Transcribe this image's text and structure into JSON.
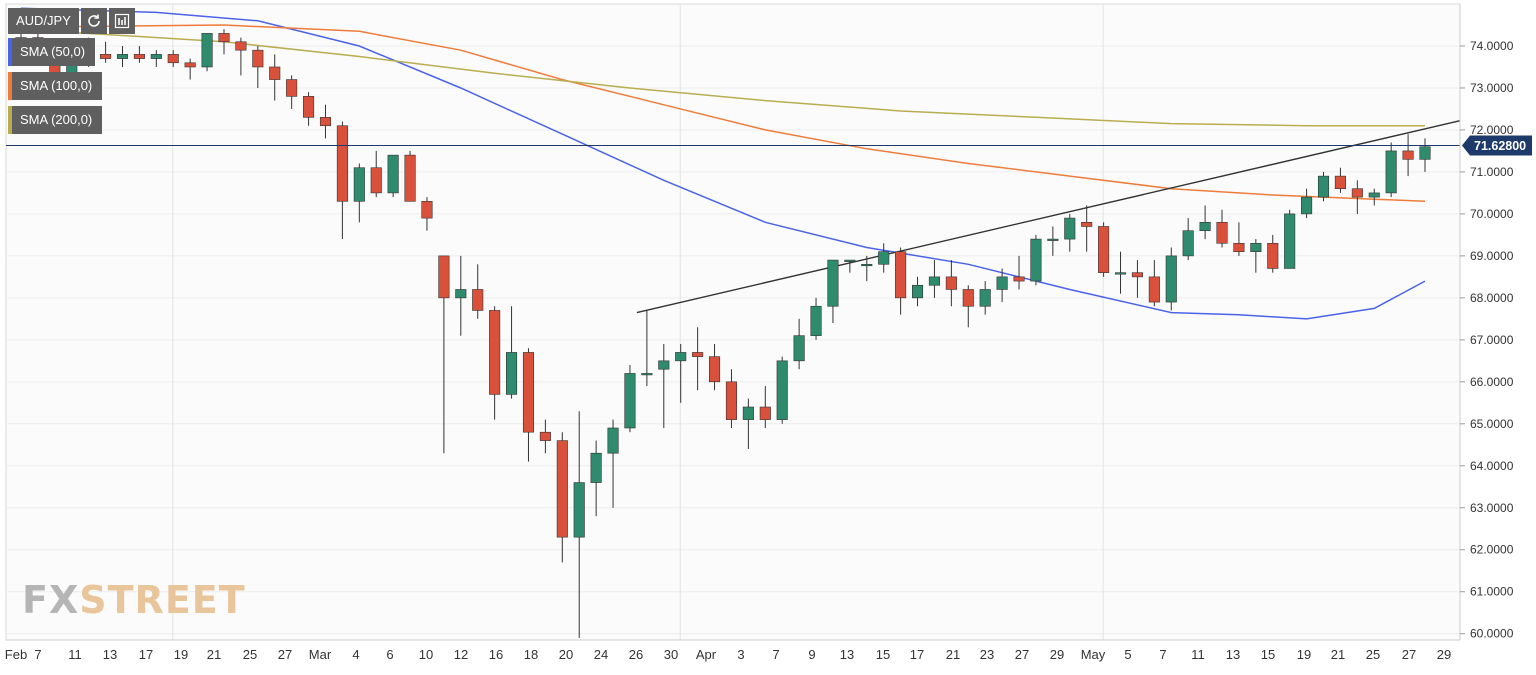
{
  "symbol": "AUD/JPY",
  "toolbar": {
    "refresh_icon": "refresh-icon",
    "chart_icon": "chart-settings-icon"
  },
  "indicators": [
    {
      "label": "SMA (50,0)",
      "color": "#4a63e8"
    },
    {
      "label": "SMA (100,0)",
      "color": "#ef7c3a"
    },
    {
      "label": "SMA (200,0)",
      "color": "#b9ad4f"
    }
  ],
  "watermark": {
    "part1": "FX",
    "part2": "STREET"
  },
  "colors": {
    "up": "#2e8b6e",
    "down": "#d9513b",
    "wick": "#333333",
    "price_line": "#1e3a6a",
    "trend_line": "#333333"
  },
  "chart_data": {
    "type": "candlestick",
    "title": "",
    "ylim": [
      59.85,
      75.0
    ],
    "y_ticks": [
      "60.0000",
      "61.0000",
      "62.0000",
      "63.0000",
      "64.0000",
      "65.0000",
      "66.0000",
      "67.0000",
      "68.0000",
      "69.0000",
      "70.0000",
      "71.0000",
      "72.0000",
      "73.0000",
      "74.0000"
    ],
    "x_ticks": [
      "Feb",
      "7",
      "11",
      "13",
      "17",
      "19",
      "21",
      "25",
      "27",
      "Mar",
      "4",
      "6",
      "10",
      "12",
      "16",
      "18",
      "20",
      "24",
      "26",
      "30",
      "Apr",
      "3",
      "7",
      "9",
      "13",
      "15",
      "17",
      "21",
      "23",
      "27",
      "29",
      "May",
      "5",
      "7",
      "11",
      "13",
      "15",
      "19",
      "21",
      "25",
      "27",
      "29"
    ],
    "last_price": "71.62800",
    "last_price_value": 71.628,
    "candles": [
      [
        74.2,
        74.3,
        73.9,
        74.2
      ],
      [
        74.2,
        74.3,
        73.6,
        73.9
      ],
      [
        73.9,
        74.1,
        73.2,
        73.3
      ],
      [
        73.3,
        74.0,
        73.2,
        73.9
      ],
      [
        73.9,
        74.2,
        73.5,
        73.8
      ],
      [
        73.8,
        74.1,
        73.6,
        73.7
      ],
      [
        73.7,
        74.0,
        73.5,
        73.8
      ],
      [
        73.8,
        74.0,
        73.6,
        73.7
      ],
      [
        73.7,
        73.9,
        73.5,
        73.8
      ],
      [
        73.8,
        73.9,
        73.5,
        73.6
      ],
      [
        73.6,
        73.7,
        73.2,
        73.5
      ],
      [
        73.5,
        74.3,
        73.4,
        74.3
      ],
      [
        74.3,
        74.4,
        73.8,
        74.1
      ],
      [
        74.1,
        74.2,
        73.3,
        73.9
      ],
      [
        73.9,
        74.0,
        73.0,
        73.5
      ],
      [
        73.5,
        73.8,
        72.7,
        73.2
      ],
      [
        73.2,
        73.3,
        72.5,
        72.8
      ],
      [
        72.8,
        72.9,
        72.1,
        72.3
      ],
      [
        72.3,
        72.6,
        71.8,
        72.1
      ],
      [
        72.1,
        72.2,
        69.4,
        70.3
      ],
      [
        70.3,
        71.2,
        69.8,
        71.1
      ],
      [
        71.1,
        71.5,
        70.4,
        70.5
      ],
      [
        70.5,
        71.4,
        70.4,
        71.4
      ],
      [
        71.4,
        71.5,
        70.3,
        70.3
      ],
      [
        70.3,
        70.4,
        69.6,
        69.9
      ],
      [
        69.0,
        69.0,
        64.3,
        68.0
      ],
      [
        68.0,
        69.0,
        67.1,
        68.2
      ],
      [
        68.2,
        68.8,
        67.5,
        67.7
      ],
      [
        67.7,
        67.8,
        65.1,
        65.7
      ],
      [
        65.7,
        67.8,
        65.6,
        66.7
      ],
      [
        66.7,
        66.8,
        64.1,
        64.8
      ],
      [
        64.8,
        65.1,
        64.3,
        64.6
      ],
      [
        64.6,
        64.8,
        61.7,
        62.3
      ],
      [
        62.3,
        65.3,
        59.9,
        63.6
      ],
      [
        63.6,
        64.6,
        62.8,
        64.3
      ],
      [
        64.3,
        65.1,
        63.0,
        64.9
      ],
      [
        64.9,
        66.4,
        64.8,
        66.2
      ],
      [
        66.2,
        67.7,
        65.9,
        66.2
      ],
      [
        66.3,
        66.9,
        64.9,
        66.5
      ],
      [
        66.5,
        66.9,
        65.5,
        66.7
      ],
      [
        66.7,
        67.3,
        65.8,
        66.6
      ],
      [
        66.6,
        66.9,
        65.8,
        66.0
      ],
      [
        66.0,
        66.3,
        64.9,
        65.1
      ],
      [
        65.1,
        65.6,
        64.4,
        65.4
      ],
      [
        65.4,
        65.9,
        64.9,
        65.1
      ],
      [
        65.1,
        66.6,
        65.0,
        66.5
      ],
      [
        66.5,
        67.5,
        66.3,
        67.1
      ],
      [
        67.1,
        68.0,
        67.0,
        67.8
      ],
      [
        67.8,
        68.9,
        67.4,
        68.9
      ],
      [
        68.9,
        68.9,
        68.6,
        68.9
      ],
      [
        68.8,
        69.0,
        68.4,
        68.8
      ],
      [
        68.8,
        69.3,
        68.6,
        69.1
      ],
      [
        69.1,
        69.2,
        67.6,
        68.0
      ],
      [
        68.0,
        68.5,
        67.8,
        68.3
      ],
      [
        68.3,
        68.9,
        68.0,
        68.5
      ],
      [
        68.5,
        68.9,
        67.8,
        68.2
      ],
      [
        68.2,
        68.3,
        67.3,
        67.8
      ],
      [
        67.8,
        68.4,
        67.6,
        68.2
      ],
      [
        68.2,
        68.7,
        67.9,
        68.5
      ],
      [
        68.5,
        69.0,
        68.2,
        68.4
      ],
      [
        68.4,
        69.5,
        68.3,
        69.4
      ],
      [
        69.4,
        69.7,
        69.0,
        69.4
      ],
      [
        69.4,
        70.0,
        69.1,
        69.9
      ],
      [
        69.8,
        70.2,
        69.1,
        69.7
      ],
      [
        69.7,
        69.8,
        68.5,
        68.6
      ],
      [
        68.6,
        69.1,
        68.1,
        68.6
      ],
      [
        68.6,
        68.9,
        68.0,
        68.5
      ],
      [
        68.5,
        68.9,
        67.8,
        67.9
      ],
      [
        67.9,
        69.2,
        67.7,
        69.0
      ],
      [
        69.0,
        69.9,
        68.9,
        69.6
      ],
      [
        69.6,
        70.2,
        69.4,
        69.8
      ],
      [
        69.8,
        70.1,
        69.2,
        69.3
      ],
      [
        69.3,
        69.8,
        69.0,
        69.1
      ],
      [
        69.1,
        69.4,
        68.6,
        69.3
      ],
      [
        69.3,
        69.5,
        68.6,
        68.7
      ],
      [
        68.7,
        70.1,
        68.7,
        70.0
      ],
      [
        70.0,
        70.6,
        69.9,
        70.4
      ],
      [
        70.4,
        71.0,
        70.3,
        70.9
      ],
      [
        70.9,
        71.1,
        70.5,
        70.6
      ],
      [
        70.6,
        70.8,
        70.0,
        70.4
      ],
      [
        70.4,
        70.6,
        70.2,
        70.5
      ],
      [
        70.5,
        71.7,
        70.4,
        71.5
      ],
      [
        71.5,
        71.9,
        70.9,
        71.3
      ],
      [
        71.3,
        71.8,
        71.0,
        71.6
      ]
    ],
    "sma": [
      {
        "name": "SMA (50,0)",
        "color": "#4a63e8",
        "points": [
          [
            0,
            74.9
          ],
          [
            8,
            74.8
          ],
          [
            14,
            74.6
          ],
          [
            20,
            74.0
          ],
          [
            26,
            73.0
          ],
          [
            32,
            71.9
          ],
          [
            38,
            70.8
          ],
          [
            44,
            69.8
          ],
          [
            50,
            69.2
          ],
          [
            56,
            68.8
          ],
          [
            62,
            68.2
          ],
          [
            68,
            67.65
          ],
          [
            72,
            67.6
          ],
          [
            76,
            67.5
          ],
          [
            80,
            67.75
          ],
          [
            83,
            68.4
          ]
        ]
      },
      {
        "name": "SMA (100,0)",
        "color": "#ef7c3a",
        "points": [
          [
            0,
            74.45
          ],
          [
            12,
            74.5
          ],
          [
            20,
            74.35
          ],
          [
            26,
            73.9
          ],
          [
            32,
            73.2
          ],
          [
            38,
            72.6
          ],
          [
            44,
            72.0
          ],
          [
            50,
            71.55
          ],
          [
            56,
            71.2
          ],
          [
            62,
            70.9
          ],
          [
            68,
            70.6
          ],
          [
            74,
            70.45
          ],
          [
            80,
            70.35
          ],
          [
            83,
            70.3
          ]
        ]
      },
      {
        "name": "SMA (200,0)",
        "color": "#b9ad4f",
        "points": [
          [
            0,
            74.4
          ],
          [
            12,
            74.1
          ],
          [
            20,
            73.75
          ],
          [
            28,
            73.35
          ],
          [
            36,
            73.0
          ],
          [
            44,
            72.7
          ],
          [
            52,
            72.45
          ],
          [
            60,
            72.3
          ],
          [
            68,
            72.15
          ],
          [
            76,
            72.1
          ],
          [
            83,
            72.1
          ]
        ]
      }
    ],
    "trend_line": [
      [
        37,
        67.65
      ],
      [
        83,
        72.1
      ]
    ]
  }
}
